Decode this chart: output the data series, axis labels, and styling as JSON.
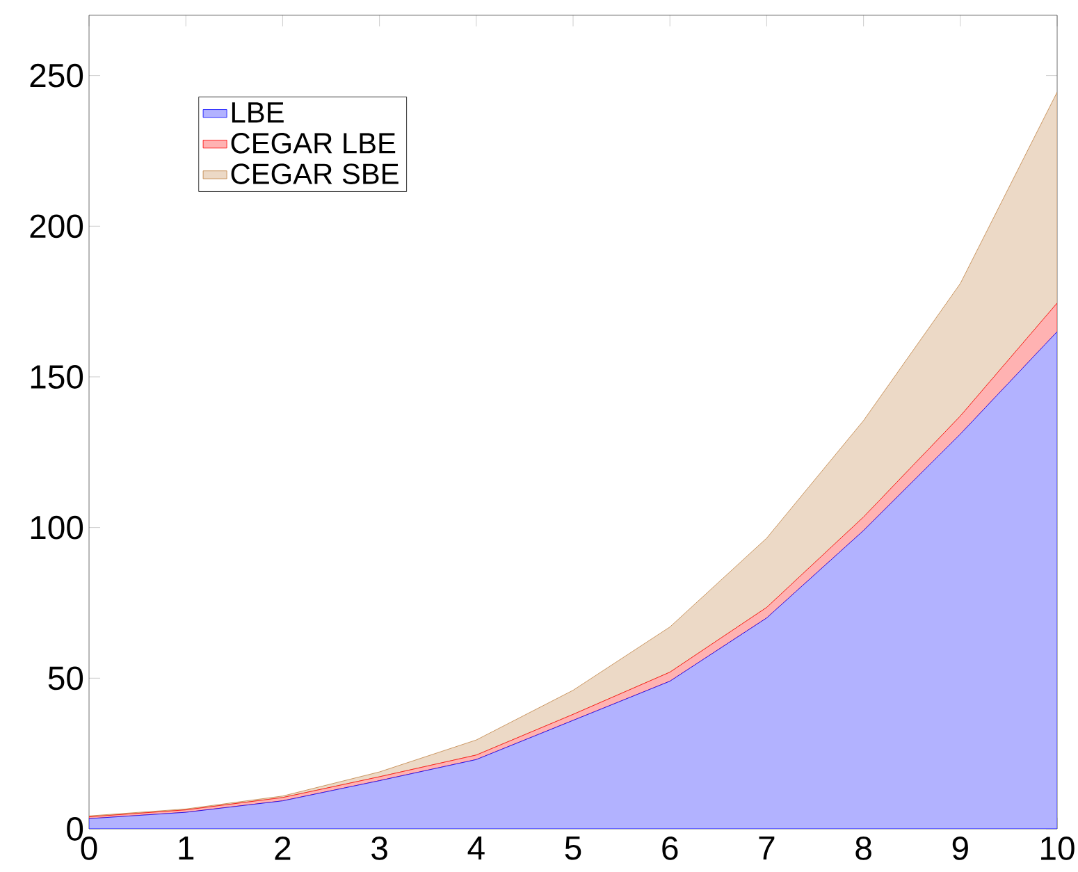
{
  "chart_data": {
    "type": "area",
    "stacked": true,
    "legend": "top left",
    "x": [
      0,
      1,
      2,
      3,
      4,
      5,
      6,
      7,
      8,
      9,
      10
    ],
    "xlim": [
      0,
      10
    ],
    "ylim": [
      0,
      270
    ],
    "xticks": [
      0,
      1,
      2,
      3,
      4,
      5,
      6,
      7,
      8,
      9,
      10
    ],
    "yticks": [
      0,
      50,
      100,
      150,
      200,
      250
    ],
    "series": [
      {
        "name": "LBE",
        "color": "#0000ff",
        "values": [
          3.4,
          5.5,
          9.3,
          16,
          23,
          36,
          49,
          70,
          99,
          131,
          165
        ]
      },
      {
        "name": "CEGAR LBE",
        "color": "#ff0000",
        "values": [
          0.6,
          0.8,
          1.1,
          1.3,
          1.5,
          2,
          3,
          3.5,
          4.5,
          6,
          9.5
        ]
      },
      {
        "name": "CEGAR SBE",
        "color": "#bf8040",
        "values": [
          0.3,
          0.3,
          0.5,
          1.6,
          5,
          8,
          15,
          23,
          32,
          44,
          70
        ]
      }
    ]
  }
}
